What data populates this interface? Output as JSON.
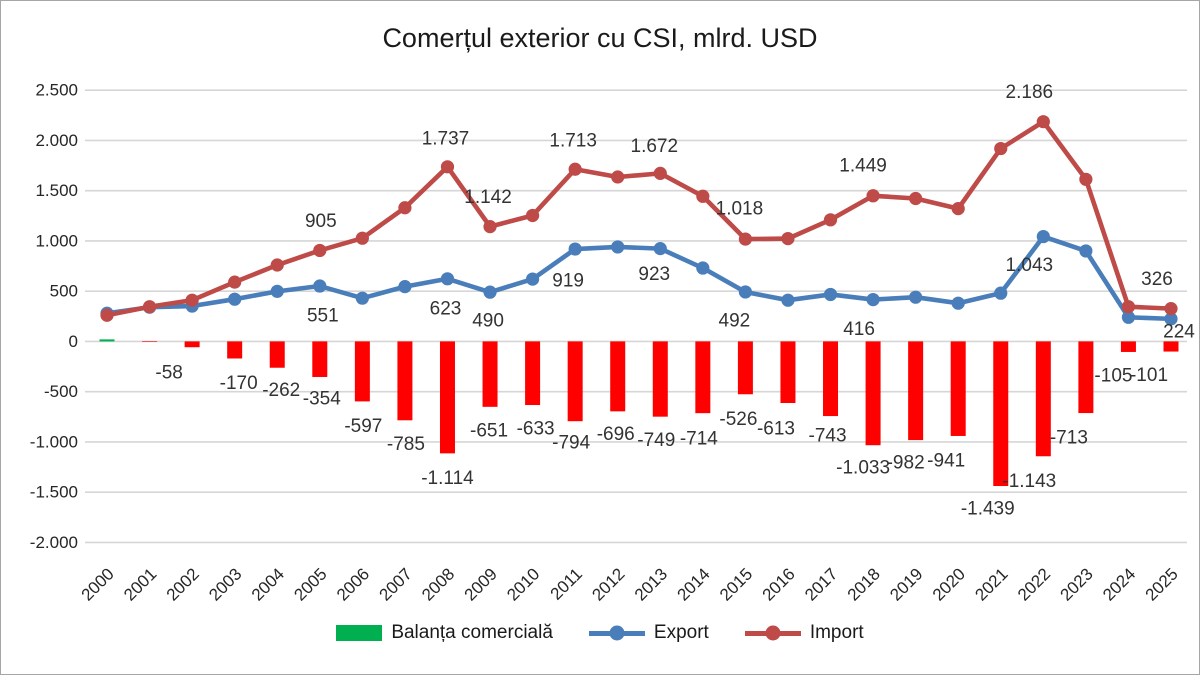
{
  "title": "Comerțul exterior cu CSI, mlrd. USD",
  "colors": {
    "balance_positive": "#00B050",
    "balance_negative": "#FE0000",
    "export": "#4A7EBB",
    "import": "#BE4B48",
    "gridline": "#D6D6D6",
    "axis_text": "#262626",
    "label_text": "#333333",
    "border": "#A6A6A6"
  },
  "y_axis": {
    "min": -2000,
    "max": 2500,
    "step": 500,
    "ticks": [
      "2.500",
      "2.000",
      "1.500",
      "1.000",
      "500",
      "0",
      "-500",
      "-1.000",
      "-1.500",
      "-2.000"
    ]
  },
  "legend": [
    {
      "label": "Balanța comercială",
      "type": "bar",
      "color": "#00B050"
    },
    {
      "label": "Export",
      "type": "line",
      "color": "#4A7EBB"
    },
    {
      "label": "Import",
      "type": "line",
      "color": "#BE4B48"
    }
  ],
  "chart_data": {
    "type": "combo-bar-line",
    "title": "Comerțul exterior cu CSI, mlrd. USD",
    "xlabel": "",
    "ylabel": "",
    "ylim": [
      -2000,
      2500
    ],
    "grid": true,
    "legend_position": "bottom",
    "x": [
      2000,
      2001,
      2002,
      2003,
      2004,
      2005,
      2006,
      2007,
      2008,
      2009,
      2010,
      2011,
      2012,
      2013,
      2014,
      2015,
      2016,
      2017,
      2018,
      2019,
      2020,
      2021,
      2022,
      2023,
      2024,
      2025
    ],
    "series": [
      {
        "name": "Balanța comercială",
        "type": "bar",
        "values": [
          20,
          -5,
          -58,
          -170,
          -262,
          -354,
          -597,
          -785,
          -1114,
          -651,
          -633,
          -794,
          -696,
          -749,
          -714,
          -526,
          -613,
          -743,
          -1033,
          -982,
          -941,
          -1439,
          -1143,
          -713,
          -105,
          -101
        ]
      },
      {
        "name": "Export",
        "type": "line",
        "values": [
          280,
          340,
          352,
          420,
          498,
          551,
          430,
          545,
          623,
          490,
          620,
          919,
          940,
          923,
          730,
          492,
          410,
          467,
          416,
          440,
          380,
          480,
          1043,
          900,
          240,
          224
        ]
      },
      {
        "name": "Import",
        "type": "line",
        "values": [
          260,
          345,
          410,
          590,
          760,
          905,
          1027,
          1330,
          1737,
          1142,
          1253,
          1713,
          1636,
          1672,
          1444,
          1018,
          1023,
          1210,
          1449,
          1422,
          1321,
          1919,
          2186,
          1613,
          345,
          326
        ]
      }
    ],
    "labels": {
      "balance": {
        "2002": {
          "text": "-58",
          "dx": -23,
          "dy": 26
        },
        "2003": {
          "text": "-170",
          "dx": 4,
          "dy": 25
        },
        "2004": {
          "text": "-262",
          "dx": 4,
          "dy": 23
        },
        "2005": {
          "text": "-354",
          "dx": 2,
          "dy": 22
        },
        "2006": {
          "text": "-597",
          "dx": 1,
          "dy": 25
        },
        "2007": {
          "text": "-785",
          "dx": 1,
          "dy": 24
        },
        "2008": {
          "text": "-1.114",
          "dx": 0,
          "dy": 25
        },
        "2009": {
          "text": "-651",
          "dx": -1,
          "dy": 24
        },
        "2010": {
          "text": "-633",
          "dx": 3,
          "dy": 24
        },
        "2011": {
          "text": "-794",
          "dx": -4,
          "dy": 22
        },
        "2012": {
          "text": "-696",
          "dx": -2,
          "dy": 23
        },
        "2013": {
          "text": "-749",
          "dx": -4,
          "dy": 24
        },
        "2014": {
          "text": "-714",
          "dx": -4,
          "dy": 26
        },
        "2015": {
          "text": "-526",
          "dx": -7,
          "dy": 25
        },
        "2016": {
          "text": "-613",
          "dx": -12,
          "dy": 26
        },
        "2017": {
          "text": "-743",
          "dx": -3,
          "dy": 20
        },
        "2018": {
          "text": "-1.033",
          "dx": -10,
          "dy": 23
        },
        "2019": {
          "text": "-982",
          "dx": -10,
          "dy": 23
        },
        "2020": {
          "text": "-941",
          "dx": -12,
          "dy": 25
        },
        "2021": {
          "text": "-1.439",
          "dx": -13,
          "dy": 23
        },
        "2022": {
          "text": "-1.143",
          "dx": -14,
          "dy": 25
        },
        "2023": {
          "text": "-713",
          "dx": -17,
          "dy": 25
        },
        "2024": {
          "text": "-105",
          "dx": -15,
          "dy": 24
        },
        "2025": {
          "text": "-101",
          "dx": -22,
          "dy": 24
        }
      },
      "export": {
        "2005": {
          "text": "551",
          "dx": 3,
          "dy": 30
        },
        "2008": {
          "text": "623",
          "dx": -2,
          "dy": 30
        },
        "2009": {
          "text": "490",
          "dx": -2,
          "dy": 29
        },
        "2011": {
          "text": "919",
          "dx": -7,
          "dy": 32
        },
        "2013": {
          "text": "923",
          "dx": -6,
          "dy": 26
        },
        "2015": {
          "text": "492",
          "dx": -11,
          "dy": 29
        },
        "2018": {
          "text": "416",
          "dx": -14,
          "dy": 30
        },
        "2022": {
          "text": "1.043",
          "dx": -14,
          "dy": 29
        },
        "2025": {
          "text": "224",
          "dx": 8,
          "dy": 13
        }
      },
      "import": {
        "2005": {
          "text": "905",
          "dx": 1,
          "dy": -29
        },
        "2008": {
          "text": "1.737",
          "dx": -2,
          "dy": -28
        },
        "2009": {
          "text": "1.142",
          "dx": -2,
          "dy": -29
        },
        "2011": {
          "text": "1.713",
          "dx": -2,
          "dy": -28
        },
        "2013": {
          "text": "1.672",
          "dx": -6,
          "dy": -27
        },
        "2015": {
          "text": "1.018",
          "dx": -6,
          "dy": -30
        },
        "2018": {
          "text": "1.449",
          "dx": -10,
          "dy": -30
        },
        "2022": {
          "text": "2.186",
          "dx": -14,
          "dy": -29
        },
        "2025": {
          "text": "326",
          "dx": -14,
          "dy": -29
        }
      }
    }
  }
}
